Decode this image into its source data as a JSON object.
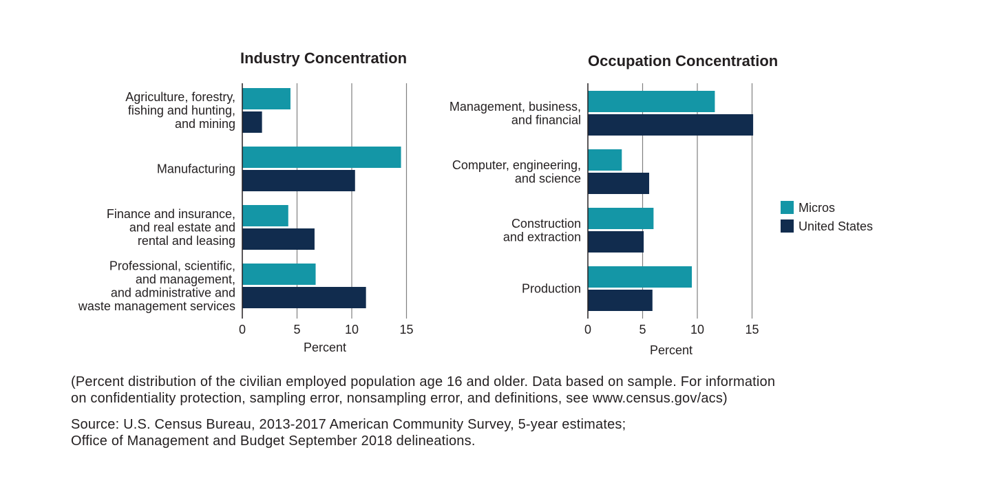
{
  "chart_data": [
    {
      "type": "bar",
      "orientation": "horizontal",
      "title": "Industry Concentration",
      "xlabel": "Percent",
      "xlim": [
        0,
        15
      ],
      "xticks": [
        0,
        5,
        10,
        15
      ],
      "grid": true,
      "categories": [
        [
          "Agriculture, forestry,",
          "fishing and hunting,",
          "and mining"
        ],
        [
          "Manufacturing"
        ],
        [
          "Finance and insurance,",
          "and real estate and",
          "rental and leasing"
        ],
        [
          "Professional, scientific,",
          "and management,",
          "and administrative and",
          "waste management services"
        ]
      ],
      "series": [
        {
          "name": "Micros",
          "values": [
            4.4,
            14.5,
            4.2,
            6.7
          ]
        },
        {
          "name": "United States",
          "values": [
            1.8,
            10.3,
            6.6,
            11.3
          ]
        }
      ]
    },
    {
      "type": "bar",
      "orientation": "horizontal",
      "title": "Occupation Concentration",
      "xlabel": "Percent",
      "xlim": [
        0,
        15
      ],
      "xticks": [
        0,
        5,
        10,
        15
      ],
      "grid": true,
      "categories": [
        [
          "Management, business,",
          "and financial"
        ],
        [
          "Computer, engineering,",
          "and science"
        ],
        [
          "Construction",
          "and extraction"
        ],
        [
          "Production"
        ]
      ],
      "series": [
        {
          "name": "Micros",
          "values": [
            11.6,
            3.1,
            6.0,
            9.5
          ]
        },
        {
          "name": "United States",
          "values": [
            15.1,
            5.6,
            5.1,
            5.9
          ]
        }
      ]
    }
  ],
  "legend": {
    "placement": "right",
    "items": [
      {
        "label": "Micros",
        "color": "#1496a6"
      },
      {
        "label": "United States",
        "color": "#112c4e"
      }
    ]
  },
  "colors": {
    "micros": "#1496a6",
    "united_states": "#112c4e",
    "gridline": "#7f7f7f",
    "text": "#231f20"
  },
  "notes": {
    "description_line1": "(Percent distribution of the civilian employed population age 16 and older. Data based on sample.  For information",
    "description_line2": "on confidentiality protection, sampling error, nonsampling error, and definitions, see www.census.gov/acs)",
    "source_line1": "Source: U.S. Census Bureau, 2013-2017 American Community Survey, 5-year estimates;",
    "source_line2": "Office of Management and Budget September 2018 delineations."
  }
}
